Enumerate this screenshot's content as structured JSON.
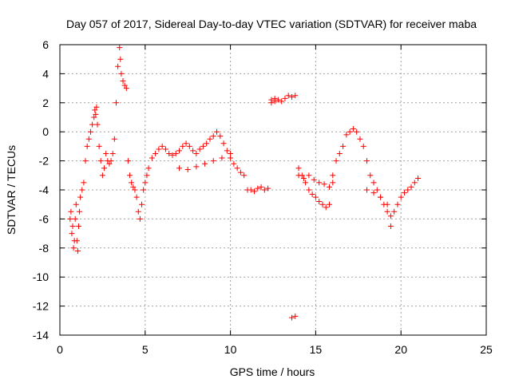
{
  "chart_data": {
    "type": "scatter",
    "title": "Day 057 of 2017, Sidereal Day-to-day VTEC variation (SDTVAR) for receiver maba",
    "xlabel": "GPS time / hours",
    "ylabel": "SDTVAR / TECUs",
    "xlim": [
      0,
      25
    ],
    "ylim": [
      -14,
      6
    ],
    "xticks": [
      0,
      5,
      10,
      15,
      20,
      25
    ],
    "yticks": [
      -14,
      -12,
      -10,
      -8,
      -6,
      -4,
      -2,
      0,
      2,
      4,
      6
    ],
    "xtick_labels": [
      "0",
      "5",
      "10",
      "15",
      "20",
      "25"
    ],
    "ytick_labels": [
      "-14",
      "-12",
      "-10",
      "-8",
      "-6",
      "-4",
      "-2",
      "0",
      "2",
      "4",
      "6"
    ],
    "grid": true,
    "marker": "plus",
    "color": "#ff0000",
    "series": [
      {
        "name": "SDTVAR",
        "x": [
          0.6,
          0.65,
          0.7,
          0.75,
          0.8,
          0.85,
          0.9,
          0.95,
          1.0,
          1.05,
          1.1,
          1.15,
          1.2,
          1.3,
          1.4,
          1.5,
          1.6,
          1.7,
          1.8,
          1.9,
          2.0,
          2.05,
          2.1,
          2.15,
          2.2,
          2.3,
          2.4,
          2.5,
          2.6,
          2.7,
          2.8,
          2.9,
          3.0,
          3.1,
          3.2,
          3.3,
          3.4,
          3.5,
          3.55,
          3.6,
          3.7,
          3.8,
          3.9,
          4.0,
          4.1,
          4.2,
          4.3,
          4.4,
          4.5,
          4.6,
          4.7,
          4.8,
          4.9,
          5.0,
          5.1,
          5.2,
          5.4,
          5.6,
          5.8,
          6.0,
          6.2,
          6.4,
          6.6,
          6.8,
          7.0,
          7.2,
          7.4,
          7.6,
          7.8,
          8.0,
          8.2,
          8.4,
          8.6,
          8.8,
          9.0,
          9.2,
          9.4,
          9.6,
          9.8,
          10.0,
          10.2,
          10.4,
          10.6,
          10.8,
          11.0,
          11.2,
          11.4,
          11.6,
          11.8,
          12.0,
          12.2,
          12.4,
          12.6,
          12.8,
          13.0,
          13.2,
          13.4,
          13.6,
          13.8,
          14.0,
          14.2,
          14.4,
          14.6,
          14.8,
          15.0,
          15.2,
          15.4,
          15.6,
          15.8,
          16.0,
          16.2,
          16.4,
          16.6,
          16.8,
          17.0,
          17.2,
          17.4,
          17.6,
          17.8,
          18.0,
          18.2,
          18.4,
          18.6,
          18.8,
          19.0,
          19.2,
          19.4,
          19.6,
          19.8,
          20.0,
          20.2,
          20.4,
          20.6,
          20.8,
          21.0,
          7.0,
          7.5,
          8.0,
          8.5,
          9.0,
          9.5,
          10.0,
          14.0,
          14.3,
          14.6,
          14.9,
          15.2,
          15.5,
          15.8,
          16.0,
          18.0,
          18.4,
          18.8,
          19.2,
          19.4,
          12.4,
          12.6,
          13.8,
          13.6
        ],
        "y": [
          -6.0,
          -5.5,
          -7.0,
          -6.5,
          -8.0,
          -7.5,
          -6.0,
          -5.0,
          -7.5,
          -8.2,
          -6.5,
          -5.5,
          -4.5,
          -4.0,
          -3.5,
          -2.0,
          -1.0,
          -0.5,
          0.0,
          0.5,
          1.0,
          1.5,
          1.2,
          1.7,
          0.5,
          -1.0,
          -2.0,
          -3.0,
          -2.5,
          -1.5,
          -2.0,
          -2.2,
          -2.0,
          -1.5,
          -0.5,
          2.0,
          4.5,
          5.8,
          5.0,
          4.0,
          3.5,
          3.2,
          3.0,
          -2.0,
          -3.0,
          -3.5,
          -3.8,
          -4.0,
          -4.5,
          -5.5,
          -6.0,
          -5.0,
          -4.0,
          -3.5,
          -3.0,
          -2.5,
          -1.8,
          -1.5,
          -1.2,
          -1.0,
          -1.2,
          -1.5,
          -1.6,
          -1.5,
          -1.3,
          -1.0,
          -0.8,
          -1.0,
          -1.3,
          -1.5,
          -1.2,
          -1.0,
          -0.8,
          -0.5,
          -0.3,
          0.0,
          -0.3,
          -0.8,
          -1.3,
          -1.8,
          -2.2,
          -2.5,
          -2.8,
          -3.0,
          -4.0,
          -4.0,
          -4.1,
          -3.9,
          -3.8,
          -4.0,
          -3.9,
          2.0,
          2.3,
          2.2,
          2.1,
          2.3,
          2.5,
          2.4,
          2.5,
          -2.5,
          -3.0,
          -3.5,
          -4.0,
          -4.3,
          -4.5,
          -4.8,
          -5.0,
          -5.2,
          -5.0,
          -3.0,
          -2.0,
          -1.5,
          -1.0,
          -0.2,
          0.0,
          0.2,
          0.0,
          -0.5,
          -1.0,
          -2.0,
          -3.0,
          -3.5,
          -4.0,
          -4.5,
          -5.0,
          -5.5,
          -5.8,
          -5.5,
          -5.0,
          -4.5,
          -4.2,
          -4.0,
          -3.8,
          -3.5,
          -3.2,
          -2.5,
          -2.6,
          -2.4,
          -2.2,
          -2.0,
          -1.8,
          -1.5,
          -3.0,
          -3.2,
          -3.0,
          -3.3,
          -3.5,
          -3.6,
          -3.8,
          -3.5,
          -4.0,
          -4.2,
          -4.5,
          -5.0,
          -6.5,
          2.2,
          2.1,
          -12.7,
          -12.8
        ]
      }
    ]
  }
}
